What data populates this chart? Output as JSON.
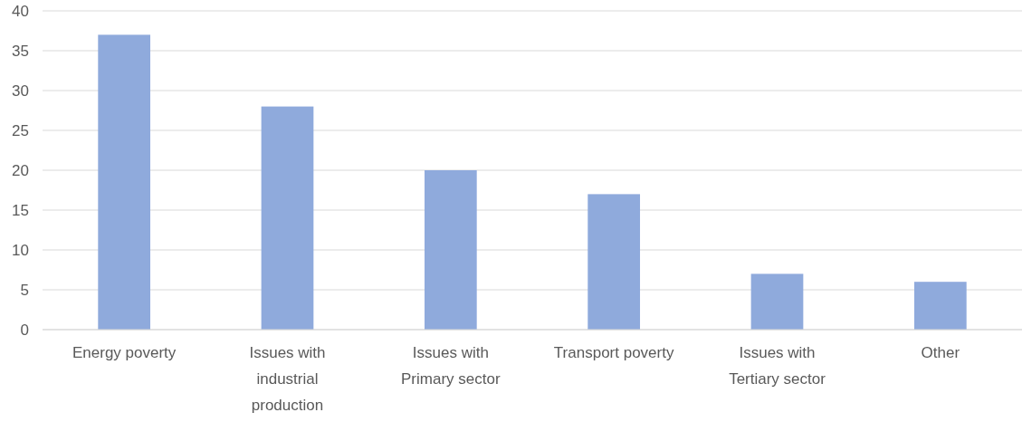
{
  "chart_data": {
    "type": "bar",
    "categories": [
      "Energy poverty",
      "Issues with industrial production",
      "Issues with Primary sector",
      "Transport poverty",
      "Issues with Tertiary sector",
      "Other"
    ],
    "values": [
      37,
      28,
      20,
      17,
      7,
      6
    ],
    "color": "#8faadc",
    "ylim": [
      0,
      40
    ],
    "yticks": [
      0,
      5,
      10,
      15,
      20,
      25,
      30,
      35,
      40
    ],
    "grid": "y"
  }
}
